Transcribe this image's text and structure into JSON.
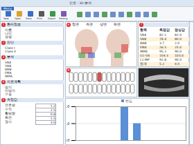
{
  "window": {
    "title": "진료 - 3D 분석",
    "menu": "Menu",
    "toolbar": [
      "New",
      "Open",
      "Save",
      "Print",
      "Export",
      "Setting"
    ]
  },
  "left_panel": [
    {
      "num": "1",
      "title": "환자정보",
      "items": [
        "이름",
        "나이",
        "성별"
      ]
    },
    {
      "num": "2",
      "title": "진단",
      "items": [
        "Class I",
        "Class II"
      ]
    },
    {
      "num": "3",
      "title": "분석",
      "items": [
        "SNA",
        "SNB",
        "ANB",
        "FMA",
        "IMPA"
      ]
    },
    {
      "num": "4",
      "title": "치료계획",
      "items": [
        "발치",
        "비발치",
        "수술"
      ]
    },
    {
      "num": "5",
      "title": "측정값",
      "rows": [
        [
          "전후방",
          "1.2"
        ],
        [
          "수직",
          "2.5"
        ],
        [
          "횡방향",
          "0.8"
        ],
        [
          "회전",
          "1.5"
        ],
        [
          "경사",
          "3.0"
        ]
      ]
    }
  ],
  "view_tabs": {
    "num": "6",
    "tabs": [
      "정면",
      "측면",
      "상면",
      "하면"
    ]
  },
  "table": {
    "num": "7",
    "header": [
      "항목",
      "측정값",
      "정상값"
    ],
    "rows": [
      [
        "SNA",
        "82.1",
        "82.0"
      ],
      [
        "SNB",
        "78.4",
        "80.0"
      ],
      [
        "ANB",
        "3.7",
        "2.0"
      ],
      [
        "FMA",
        "26.5",
        "25.0"
      ],
      [
        "IMPA",
        "95.2",
        "90.0"
      ],
      [
        "U1-SN",
        "104.3",
        "103.0"
      ],
      [
        "L1-MP",
        "92.8",
        "90.0"
      ],
      [
        "합계",
        "5.2",
        "4.0"
      ]
    ]
  },
  "tooth_chart": {
    "num": "8"
  },
  "chart_data": {
    "type": "bar",
    "title": "빈도",
    "categories": [
      null,
      null,
      null,
      null,
      null,
      null,
      null,
      null
    ],
    "values": [
      0,
      0,
      0,
      2,
      1,
      0,
      0,
      0
    ],
    "color": "#5b8fd6",
    "ylim": [
      0,
      2
    ],
    "yticks": [
      0,
      1,
      2
    ],
    "grid": true
  }
}
